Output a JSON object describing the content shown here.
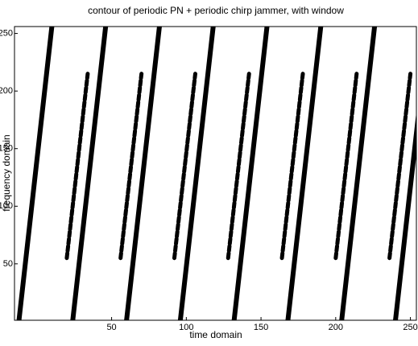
{
  "chart_data": {
    "type": "contour",
    "title": "contour of periodic PN + periodic chirp jammer, with window",
    "xlabel": "time domain",
    "ylabel": "frequency domain",
    "xlim": [
      -15,
      254
    ],
    "ylim": [
      1,
      256
    ],
    "xticks": [
      50,
      100,
      150,
      200,
      250
    ],
    "yticks": [
      50,
      100,
      150,
      200,
      250
    ],
    "color": "#000000",
    "jammer_lines": [
      {
        "x": [
          -12,
          10
        ],
        "y": [
          1,
          256
        ]
      },
      {
        "x": [
          24,
          46
        ],
        "y": [
          1,
          256
        ]
      },
      {
        "x": [
          60,
          82
        ],
        "y": [
          1,
          256
        ]
      },
      {
        "x": [
          96,
          118
        ],
        "y": [
          1,
          256
        ]
      },
      {
        "x": [
          132,
          154
        ],
        "y": [
          1,
          256
        ]
      },
      {
        "x": [
          168,
          190
        ],
        "y": [
          1,
          256
        ]
      },
      {
        "x": [
          204,
          226
        ],
        "y": [
          1,
          256
        ]
      },
      {
        "x": [
          240,
          262
        ],
        "y": [
          1,
          256
        ]
      }
    ],
    "pn_lines": [
      {
        "x": [
          20,
          34
        ],
        "y": [
          55,
          215
        ]
      },
      {
        "x": [
          56,
          70
        ],
        "y": [
          55,
          215
        ]
      },
      {
        "x": [
          92,
          106
        ],
        "y": [
          55,
          215
        ]
      },
      {
        "x": [
          128,
          142
        ],
        "y": [
          55,
          215
        ]
      },
      {
        "x": [
          164,
          178
        ],
        "y": [
          55,
          215
        ]
      },
      {
        "x": [
          200,
          214
        ],
        "y": [
          55,
          215
        ]
      },
      {
        "x": [
          236,
          250
        ],
        "y": [
          55,
          215
        ]
      }
    ]
  }
}
